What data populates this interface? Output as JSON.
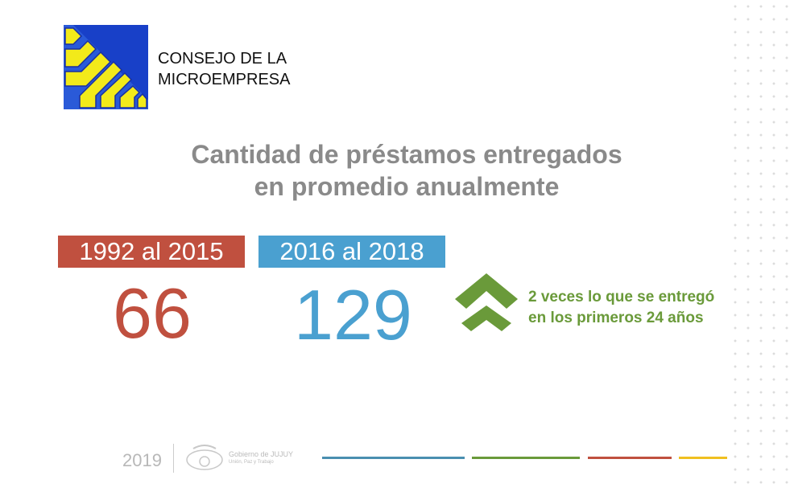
{
  "header": {
    "org_name_line1": "CONSEJO DE LA",
    "org_name_line2": "MICROEMPRESA"
  },
  "title": {
    "line1": "Cantidad de préstamos entregados",
    "line2": "en promedio anualmente"
  },
  "periods": [
    {
      "label": "1992 al 2015",
      "value": "66",
      "color": "#c0503f"
    },
    {
      "label": "2016 al 2018",
      "value": "129",
      "color": "#4aa0d0"
    }
  ],
  "note": {
    "line1": "2 veces lo que se entregó",
    "line2": "en los primeros 24 años",
    "icon": "double-chevron-up-icon",
    "color": "#6a9a3a"
  },
  "footer": {
    "year": "2019",
    "gov_name": "Gobierno de JUJUY",
    "gov_motto": "Unión, Paz y Trabajo"
  },
  "colors": {
    "blue": "#4a8fb0",
    "green": "#6a9a3a",
    "red": "#c0503f",
    "yellow": "#f0c020"
  }
}
